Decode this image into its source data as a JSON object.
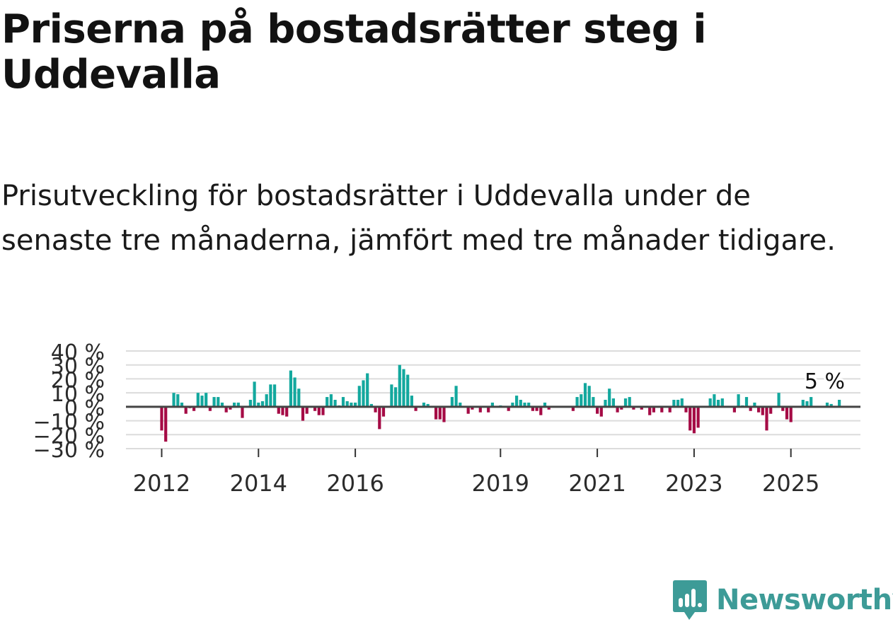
{
  "title": "Priserna på bostadsrätter steg i Uddevalla",
  "subtitle": "Prisutveckling för bostadsrätter i Uddevalla under de senaste tre månaderna, jämfört med tre månader tidigare.",
  "brand": {
    "name": "Newsworthy",
    "color": "#3d9b97",
    "icon": "newsworthy-logo-icon"
  },
  "colors": {
    "positive": "#13a89e",
    "negative": "#a50b45",
    "grid": "#dcdcdc",
    "zero": "#444444"
  },
  "chart_data": {
    "type": "bar",
    "title": "Priserna på bostadsrätter steg i Uddevalla",
    "xlabel": "",
    "ylabel": "",
    "ylim": [
      -30,
      40
    ],
    "ytick_values": [
      -30,
      -20,
      -10,
      0,
      10,
      20,
      30,
      40
    ],
    "ytick_labels": [
      "−30 %",
      "−20 %",
      "−10 %",
      "0 %",
      "10 %",
      "20 %",
      "30 %",
      "40 %"
    ],
    "xtick_labels": [
      "2012",
      "2014",
      "2016",
      "2019",
      "2021",
      "2023",
      "2025"
    ],
    "xtick_index": [
      0,
      24,
      48,
      84,
      108,
      132,
      156
    ],
    "last_value_label": "5 %",
    "series": [
      {
        "name": "Prisutveckling",
        "values": [
          -17,
          -25,
          null,
          10,
          9,
          3,
          -5,
          -1,
          -3,
          10,
          8,
          10,
          -3,
          7,
          7,
          3,
          -4,
          -2,
          3,
          3,
          -8,
          null,
          5,
          18,
          3,
          4,
          9,
          16,
          16,
          -5,
          -6,
          -7,
          26,
          21,
          13,
          -10,
          -5,
          null,
          -3,
          -6,
          -6,
          7,
          9,
          5,
          1,
          7,
          4,
          3,
          3,
          15,
          19,
          24,
          2,
          -4,
          -16,
          -7,
          null,
          16,
          14,
          30,
          27,
          23,
          8,
          -3,
          null,
          3,
          2,
          null,
          -9,
          -9,
          -11,
          null,
          7,
          15,
          3,
          null,
          -5,
          -2,
          null,
          -4,
          null,
          -4,
          3,
          null,
          1,
          null,
          -3,
          3,
          8,
          5,
          3,
          3,
          -3,
          -3,
          -6,
          3,
          -2,
          null,
          null,
          null,
          null,
          null,
          -3,
          7,
          9,
          17,
          15,
          7,
          -5,
          -7,
          5,
          13,
          6,
          -4,
          -2,
          6,
          7,
          -2,
          null,
          -2,
          null,
          -6,
          -4,
          null,
          -4,
          null,
          -4,
          5,
          5,
          6,
          -4,
          -17,
          -19,
          -15,
          null,
          null,
          6,
          9,
          5,
          6,
          null,
          null,
          -4,
          9,
          1,
          7,
          -3,
          3,
          -4,
          -6,
          -17,
          -5,
          null,
          10,
          -3,
          -9,
          -11,
          null,
          null,
          5,
          4,
          7,
          null,
          null,
          null,
          3,
          2,
          null,
          5
        ]
      }
    ]
  }
}
